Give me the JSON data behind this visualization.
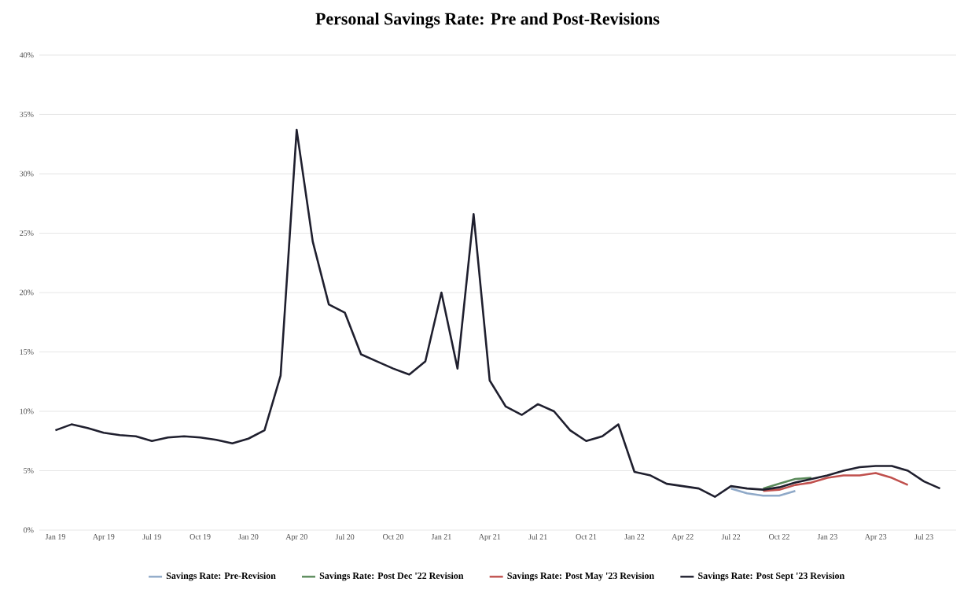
{
  "chart_data": {
    "type": "line",
    "title": "Personal Savings Rate: Pre and Post-Revisions",
    "x": [
      "2019-01",
      "2019-02",
      "2019-03",
      "2019-04",
      "2019-05",
      "2019-06",
      "2019-07",
      "2019-08",
      "2019-09",
      "2019-10",
      "2019-11",
      "2019-12",
      "2020-01",
      "2020-02",
      "2020-03",
      "2020-04",
      "2020-05",
      "2020-06",
      "2020-07",
      "2020-08",
      "2020-09",
      "2020-10",
      "2020-11",
      "2020-12",
      "2021-01",
      "2021-02",
      "2021-03",
      "2021-04",
      "2021-05",
      "2021-06",
      "2021-07",
      "2021-08",
      "2021-09",
      "2021-10",
      "2021-11",
      "2021-12",
      "2022-01",
      "2022-02",
      "2022-03",
      "2022-04",
      "2022-05",
      "2022-06",
      "2022-07",
      "2022-08",
      "2022-09",
      "2022-10",
      "2022-11",
      "2022-12",
      "2023-01",
      "2023-02",
      "2023-03",
      "2023-04",
      "2023-05",
      "2023-06",
      "2023-07",
      "2023-08"
    ],
    "series": [
      {
        "name": "Savings Rate: Pre-Revision",
        "color": "#8fa9c8",
        "values": [
          null,
          null,
          null,
          null,
          null,
          null,
          null,
          null,
          null,
          null,
          null,
          null,
          null,
          null,
          null,
          null,
          null,
          null,
          null,
          null,
          null,
          null,
          null,
          null,
          null,
          null,
          null,
          null,
          null,
          null,
          null,
          null,
          null,
          null,
          null,
          null,
          null,
          null,
          null,
          null,
          null,
          null,
          3.5,
          3.1,
          2.9,
          2.9,
          3.3,
          null,
          null,
          null,
          null,
          null,
          null,
          null,
          null,
          null
        ]
      },
      {
        "name": "Savings Rate: Post Dec '22 Revision",
        "color": "#5a8a5a",
        "values": [
          null,
          null,
          null,
          null,
          null,
          null,
          null,
          null,
          null,
          null,
          null,
          null,
          null,
          null,
          null,
          null,
          null,
          null,
          null,
          null,
          null,
          null,
          null,
          null,
          null,
          null,
          null,
          null,
          null,
          null,
          null,
          null,
          null,
          null,
          null,
          null,
          null,
          null,
          null,
          null,
          null,
          null,
          null,
          null,
          3.5,
          3.9,
          4.3,
          4.4,
          null,
          null,
          null,
          null,
          null,
          null,
          null,
          null
        ]
      },
      {
        "name": "Savings Rate: Post May '23 Revision",
        "color": "#c0504d",
        "values": [
          null,
          null,
          null,
          null,
          null,
          null,
          null,
          null,
          null,
          null,
          null,
          null,
          null,
          null,
          null,
          null,
          null,
          null,
          null,
          null,
          null,
          null,
          null,
          null,
          null,
          null,
          null,
          null,
          null,
          null,
          null,
          null,
          null,
          null,
          null,
          null,
          null,
          null,
          null,
          null,
          null,
          null,
          null,
          null,
          3.3,
          3.4,
          3.8,
          4.0,
          4.4,
          4.6,
          4.6,
          4.8,
          4.4,
          3.8,
          null,
          null
        ]
      },
      {
        "name": "Savings Rate: Post Sept '23 Revision",
        "color": "#1f1f2e",
        "values": [
          8.4,
          8.9,
          8.6,
          8.2,
          8.0,
          7.9,
          7.5,
          7.8,
          7.9,
          7.8,
          7.6,
          7.3,
          7.7,
          8.4,
          13.0,
          33.7,
          24.3,
          19.0,
          18.3,
          14.8,
          14.2,
          13.6,
          13.1,
          14.2,
          20.0,
          13.6,
          26.6,
          12.6,
          10.4,
          9.7,
          10.6,
          10.0,
          8.4,
          7.5,
          7.9,
          8.9,
          4.9,
          4.6,
          3.9,
          3.7,
          3.5,
          2.8,
          3.7,
          3.5,
          3.4,
          3.6,
          4.0,
          4.3,
          4.6,
          5.0,
          5.3,
          5.4,
          5.4,
          5.0,
          4.1,
          3.5
        ]
      }
    ],
    "xlim": [
      "2018-12",
      "2023-09"
    ],
    "xticks": [
      {
        "value": "2019-01",
        "label": "Jan 19"
      },
      {
        "value": "2019-04",
        "label": "Apr 19"
      },
      {
        "value": "2019-07",
        "label": "Jul 19"
      },
      {
        "value": "2019-10",
        "label": "Oct 19"
      },
      {
        "value": "2020-01",
        "label": "Jan 20"
      },
      {
        "value": "2020-04",
        "label": "Apr 20"
      },
      {
        "value": "2020-07",
        "label": "Jul 20"
      },
      {
        "value": "2020-10",
        "label": "Oct 20"
      },
      {
        "value": "2021-01",
        "label": "Jan 21"
      },
      {
        "value": "2021-04",
        "label": "Apr 21"
      },
      {
        "value": "2021-07",
        "label": "Jul 21"
      },
      {
        "value": "2021-10",
        "label": "Oct 21"
      },
      {
        "value": "2022-01",
        "label": "Jan 22"
      },
      {
        "value": "2022-04",
        "label": "Apr 22"
      },
      {
        "value": "2022-07",
        "label": "Jul 22"
      },
      {
        "value": "2022-10",
        "label": "Oct 22"
      },
      {
        "value": "2023-01",
        "label": "Jan 23"
      },
      {
        "value": "2023-04",
        "label": "Apr 23"
      },
      {
        "value": "2023-07",
        "label": "Jul 23"
      }
    ],
    "ylim": [
      0,
      40
    ],
    "yticks": [
      {
        "value": 0,
        "label": "0%"
      },
      {
        "value": 5,
        "label": "5%"
      },
      {
        "value": 10,
        "label": "10%"
      },
      {
        "value": 15,
        "label": "15%"
      },
      {
        "value": 20,
        "label": "20%"
      },
      {
        "value": 25,
        "label": "25%"
      },
      {
        "value": 30,
        "label": "30%"
      },
      {
        "value": 35,
        "label": "35%"
      },
      {
        "value": 40,
        "label": "40%"
      }
    ],
    "grid": "y",
    "legend": "bottom",
    "marker": "none",
    "line_style": "solid"
  }
}
